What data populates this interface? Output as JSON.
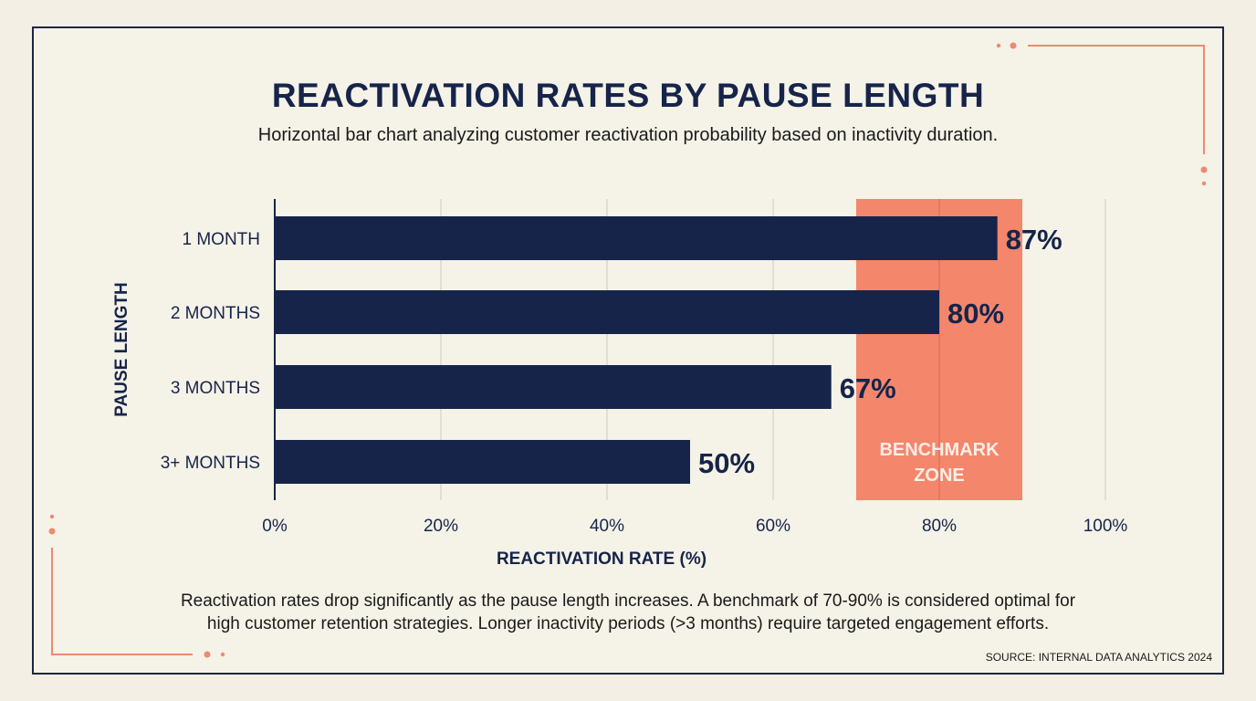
{
  "chart_data": {
    "type": "bar",
    "orientation": "horizontal",
    "title": "REACTIVATION RATES BY PAUSE LENGTH",
    "subtitle": "Horizontal bar chart analyzing customer reactivation probability based on inactivity duration.",
    "categories": [
      "1 MONTH",
      "2 MONTHS",
      "3 MONTHS",
      "3+ MONTHS"
    ],
    "values": [
      87,
      80,
      67,
      50
    ],
    "data_labels": [
      "87%",
      "80%",
      "67%",
      "50%"
    ],
    "xlabel": "REACTIVATION RATE (%)",
    "ylabel": "PAUSE LENGTH",
    "xlim": [
      0,
      100
    ],
    "x_ticks": [
      0,
      20,
      40,
      60,
      80,
      100
    ],
    "x_tick_labels": [
      "0%",
      "20%",
      "40%",
      "60%",
      "80%",
      "100%"
    ],
    "grid": true,
    "benchmark_zone": {
      "range": [
        70,
        90
      ],
      "label_line1": "BENCHMARK",
      "label_line2": "ZONE"
    },
    "colors": {
      "bar": "#16244a",
      "benchmark": "#f4866c",
      "accent": "#ec8a72"
    }
  },
  "summary_line1": "Reactivation rates drop significantly as the pause length increases. A benchmark of 70-90% is considered optimal for",
  "summary_line2": "high customer retention strategies. Longer inactivity periods (>3 months) require targeted engagement efforts.",
  "source": "SOURCE: INTERNAL DATA ANALYTICS 2024"
}
